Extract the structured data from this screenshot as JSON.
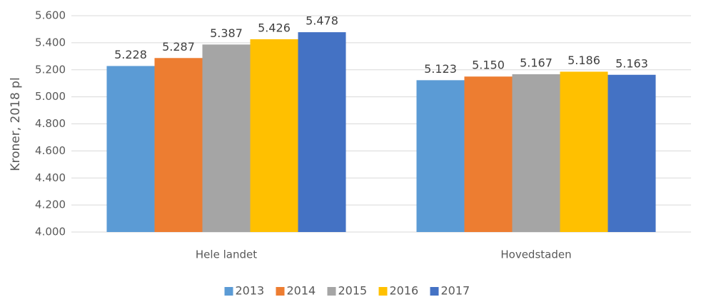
{
  "chart_data": {
    "type": "bar",
    "ylabel": "Kroner, 2018 pl",
    "categories": [
      "Hele landet",
      "Hovedstaden"
    ],
    "series": [
      {
        "name": "2013",
        "color": "#5b9bd5",
        "values": [
          5228,
          5123
        ],
        "value_labels": [
          "5.228",
          "5.123"
        ]
      },
      {
        "name": "2014",
        "color": "#ed7d31",
        "values": [
          5287,
          5150
        ],
        "value_labels": [
          "5.287",
          "5.150"
        ]
      },
      {
        "name": "2015",
        "color": "#a5a5a5",
        "values": [
          5387,
          5167
        ],
        "value_labels": [
          "5.387",
          "5.167"
        ]
      },
      {
        "name": "2016",
        "color": "#ffc000",
        "values": [
          5426,
          5186
        ],
        "value_labels": [
          "5.426",
          "5.186"
        ]
      },
      {
        "name": "2017",
        "color": "#4472c4",
        "values": [
          5478,
          5163
        ],
        "value_labels": [
          "5.478",
          "5.163"
        ]
      }
    ],
    "ylim": [
      4000,
      5600
    ],
    "yticks": [
      {
        "value": 4000,
        "label": "4.000"
      },
      {
        "value": 4200,
        "label": "4.200"
      },
      {
        "value": 4400,
        "label": "4.400"
      },
      {
        "value": 4600,
        "label": "4.600"
      },
      {
        "value": 4800,
        "label": "4.800"
      },
      {
        "value": 5000,
        "label": "5.000"
      },
      {
        "value": 5200,
        "label": "5.200"
      },
      {
        "value": 5400,
        "label": "5.400"
      },
      {
        "value": 5600,
        "label": "5.600"
      }
    ],
    "grid": true,
    "legend": "bottom"
  }
}
